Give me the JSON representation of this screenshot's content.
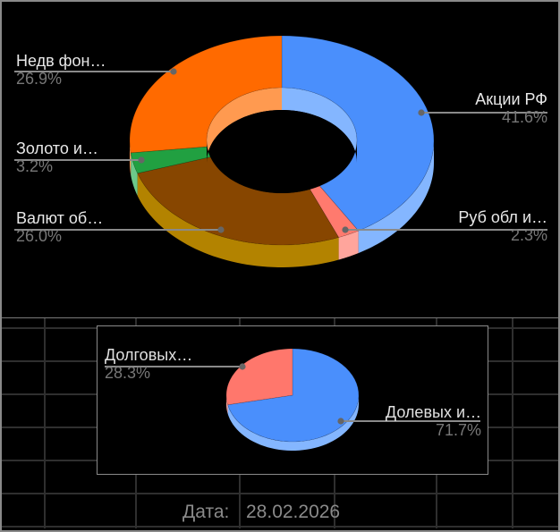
{
  "chart_data": [
    {
      "type": "pie",
      "variant": "3d-donut",
      "title": "",
      "categories": [
        "Акции РФ",
        "Руб обл и...",
        "Валют об...",
        "Золото и...",
        "Недв фон..."
      ],
      "values": [
        41.6,
        2.3,
        26.0,
        3.2,
        26.9
      ],
      "labels_display": [
        "Акции РФ",
        "Руб обл и…",
        "Валют об…",
        "Золото и…",
        "Недв фон…"
      ],
      "percent_labels": [
        "41.6%",
        "2.3%",
        "26.0%",
        "3.2%",
        "26.9%"
      ],
      "colors_top": [
        "#4a8ffc",
        "#ff7a6e",
        "#874600",
        "#21a041",
        "#ff6a00"
      ],
      "colors_side": [
        "#84b6ff",
        "#ffa59c",
        "#b38300",
        "#6cc98a",
        "#ff9a50"
      ],
      "legend_position": "labeled"
    },
    {
      "type": "pie",
      "variant": "3d",
      "title": "",
      "categories": [
        "Долевых и...",
        "Долговых..."
      ],
      "values": [
        71.7,
        28.3
      ],
      "labels_display": [
        "Долевых и…",
        "Долговых…"
      ],
      "percent_labels": [
        "71.7%",
        "28.3%"
      ],
      "colors_top": [
        "#4a8ffc",
        "#ff776c"
      ],
      "colors_side": [
        "#84b6ff",
        "#ffa59c"
      ],
      "legend_position": "labeled"
    }
  ],
  "top_chart": {
    "labels": [
      {
        "name": "Недв фон…",
        "pct": "26.9%"
      },
      {
        "name": "Золото и…",
        "pct": "3.2%"
      },
      {
        "name": "Валют об…",
        "pct": "26.0%"
      },
      {
        "name": "Акции РФ",
        "pct": "41.6%"
      },
      {
        "name": "Руб обл и…",
        "pct": "2.3%"
      }
    ]
  },
  "bottom_chart": {
    "labels": [
      {
        "name": "Долговых…",
        "pct": "28.3%"
      },
      {
        "name": "Долевых и…",
        "pct": "71.7%"
      }
    ]
  },
  "footer": {
    "date_label": "Дата:",
    "date_value": "28.02.2026"
  }
}
